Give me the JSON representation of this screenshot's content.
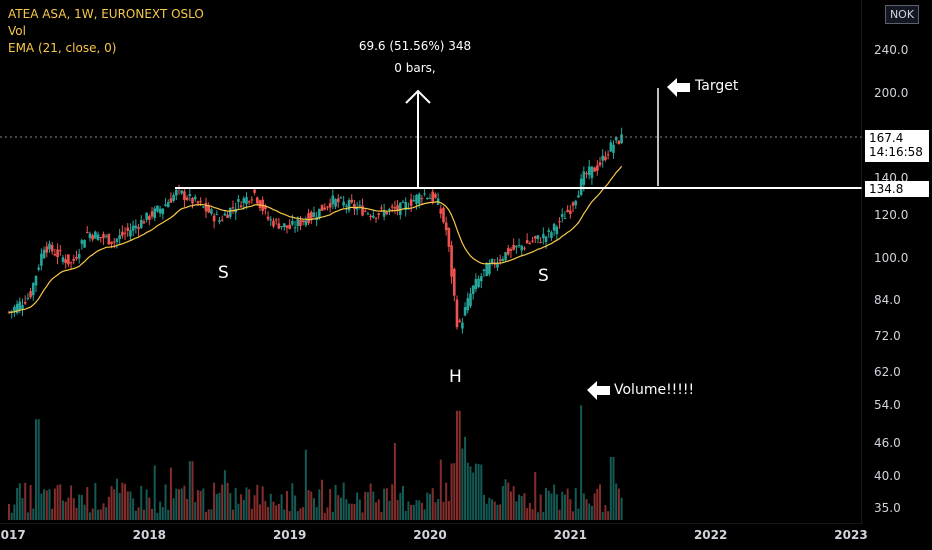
{
  "legend": {
    "title": "ATEA ASA, 1W, EURONEXT OSLO",
    "volume": "Vol",
    "ema": "EMA (21, close, 0)"
  },
  "measurement": {
    "line1": "69.6 (51.56%) 348",
    "line2": "0 bars,"
  },
  "annotations": {
    "target": "Target",
    "volume": "Volume!!!!!",
    "left_shoulder": "S",
    "head": "H",
    "right_shoulder": "S"
  },
  "currency": "NOK",
  "price_badge": {
    "price": "167.4",
    "time": "14:16:58"
  },
  "level_badge": "134.8",
  "colors": {
    "up": "#26a69a",
    "down": "#ef5350",
    "ema": "#f7c948",
    "neckline": "#ffffff",
    "background": "#000000"
  },
  "chart_data": {
    "type": "candlestick",
    "title": "ATEA ASA, 1W, EURONEXT OSLO",
    "y_scale": "log",
    "ylim": [
      33,
      265
    ],
    "y_ticks": [
      "35.0",
      "40.0",
      "46.0",
      "54.0",
      "62.0",
      "72.0",
      "84.0",
      "100.0",
      "120.0",
      "140.0",
      "200.0",
      "240.0"
    ],
    "x_ticks": [
      "2017",
      "2018",
      "2019",
      "2020",
      "2021",
      "2022",
      "2023"
    ],
    "neckline": 134.8,
    "current_price": 167.4,
    "target_move": "69.6 (51.56%)",
    "price_path": [
      {
        "date": "2017.0",
        "close": 80
      },
      {
        "date": "2017.15",
        "close": 86
      },
      {
        "date": "2017.25",
        "close": 106
      },
      {
        "date": "2017.45",
        "close": 98
      },
      {
        "date": "2017.55",
        "close": 112
      },
      {
        "date": "2017.75",
        "close": 108
      },
      {
        "date": "2017.9",
        "close": 115
      },
      {
        "date": "2018.1",
        "close": 125
      },
      {
        "date": "2018.2",
        "close": 133
      },
      {
        "date": "2018.35",
        "close": 126
      },
      {
        "date": "2018.5",
        "close": 118
      },
      {
        "date": "2018.6",
        "close": 125
      },
      {
        "date": "2018.75",
        "close": 132
      },
      {
        "date": "2018.85",
        "close": 118
      },
      {
        "date": "2019.0",
        "close": 114
      },
      {
        "date": "2019.2",
        "close": 122
      },
      {
        "date": "2019.3",
        "close": 128
      },
      {
        "date": "2019.4",
        "close": 126
      },
      {
        "date": "2019.6",
        "close": 121
      },
      {
        "date": "2019.8",
        "close": 124
      },
      {
        "date": "2019.95",
        "close": 132
      },
      {
        "date": "2020.05",
        "close": 128
      },
      {
        "date": "2020.12",
        "close": 112
      },
      {
        "date": "2020.2",
        "close": 74
      },
      {
        "date": "2020.3",
        "close": 88
      },
      {
        "date": "2020.4",
        "close": 96
      },
      {
        "date": "2020.55",
        "close": 103
      },
      {
        "date": "2020.7",
        "close": 107
      },
      {
        "date": "2020.85",
        "close": 111
      },
      {
        "date": "2021.0",
        "close": 124
      },
      {
        "date": "2021.1",
        "close": 142
      },
      {
        "date": "2021.2",
        "close": 148
      },
      {
        "date": "2021.3",
        "close": 162
      },
      {
        "date": "2021.38",
        "close": 167.4
      }
    ],
    "volume_spikes": [
      {
        "date": "2017.2",
        "volume": 0.72
      },
      {
        "date": "2018.3",
        "volume": 0.42
      },
      {
        "date": "2019.75",
        "volume": 0.55
      },
      {
        "date": "2020.2",
        "volume": 0.78
      },
      {
        "date": "2021.08",
        "volume": 0.82
      },
      {
        "date": "2021.3",
        "volume": 0.45
      }
    ]
  }
}
